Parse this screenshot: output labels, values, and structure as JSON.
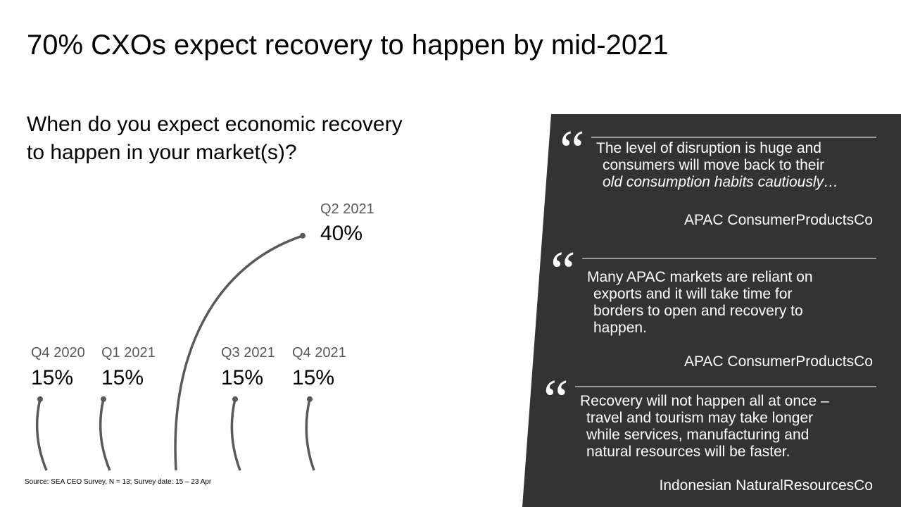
{
  "title": "70% CXOs expect recovery to happen by mid-2021",
  "chart_data": {
    "type": "curve",
    "title": "When do you expect economic recovery to happen in your market(s)?",
    "categories": [
      "Q4 2020",
      "Q1 2021",
      "Q2 2021",
      "Q3 2021",
      "Q4 2021"
    ],
    "values": [
      15,
      15,
      40,
      15,
      15
    ],
    "value_labels": [
      "15%",
      "15%",
      "40%",
      "15%",
      "15%"
    ],
    "color": "#595959"
  },
  "source": "Source: SEA CEO Survey, N = 13; Survey date: 15 – 23 Apr",
  "quotes": [
    {
      "lines": [
        "The level of disruption is huge and",
        "consumers will move back to their",
        "old consumption habits cautiously…"
      ],
      "author": "APAC ConsumerProductsCo"
    },
    {
      "lines": [
        "Many APAC markets are reliant on",
        "exports and it will take time for",
        "borders to open and recovery to",
        "happen."
      ],
      "author": "APAC ConsumerProductsCo"
    },
    {
      "lines": [
        "Recovery will not happen all at once –",
        "travel and tourism may take longer",
        "while services, manufacturing and",
        "natural resources will be faster."
      ],
      "author": "Indonesian NaturalResourcesCo"
    }
  ]
}
